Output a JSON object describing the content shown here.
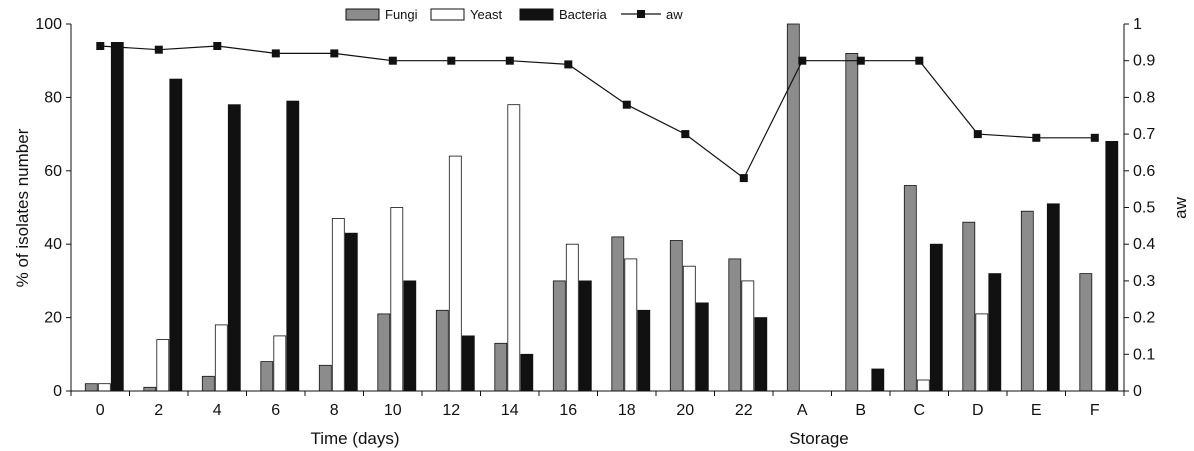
{
  "chart_data": {
    "type": "bar",
    "categories": [
      "0",
      "2",
      "4",
      "6",
      "8",
      "10",
      "12",
      "14",
      "16",
      "18",
      "20",
      "22",
      "A",
      "B",
      "C",
      "D",
      "E",
      "F"
    ],
    "series": [
      {
        "name": "Fungi",
        "values": [
          2,
          1,
          4,
          8,
          7,
          21,
          22,
          13,
          30,
          42,
          41,
          36,
          100,
          92,
          56,
          46,
          49,
          32
        ]
      },
      {
        "name": "Yeast",
        "values": [
          2,
          14,
          18,
          15,
          47,
          50,
          64,
          78,
          40,
          36,
          34,
          30,
          0,
          0,
          3,
          21,
          0,
          0
        ]
      },
      {
        "name": "Bacteria",
        "values": [
          95,
          85,
          78,
          79,
          43,
          30,
          15,
          10,
          30,
          22,
          24,
          20,
          0,
          6,
          40,
          32,
          51,
          68
        ]
      }
    ],
    "line_series": {
      "name": "aw",
      "axis": "right",
      "values": [
        0.94,
        0.93,
        0.94,
        0.92,
        0.92,
        0.9,
        0.9,
        0.9,
        0.89,
        0.78,
        0.7,
        0.58,
        0.9,
        0.9,
        0.9,
        0.7,
        0.69,
        0.69
      ]
    },
    "colors": {
      "Fungi": "#8c8c8c",
      "Yeast": "#ffffff",
      "Bacteria": "#111111",
      "aw": "#111111"
    },
    "ylabel": "% of isolates number",
    "y2label": "aw",
    "xlabel_groups": [
      {
        "label": "Time (days)"
      },
      {
        "label": "Storage"
      }
    ],
    "ylim": [
      0,
      100
    ],
    "yticks": [
      "0",
      "20",
      "40",
      "60",
      "80",
      "100"
    ],
    "y2lim": [
      0,
      1
    ],
    "y2ticks": [
      "0",
      "0.1",
      "0.2",
      "0.3",
      "0.4",
      "0.5",
      "0.6",
      "0.7",
      "0.8",
      "0.9",
      "1"
    ],
    "grid": false,
    "legend_position": "top-center"
  }
}
